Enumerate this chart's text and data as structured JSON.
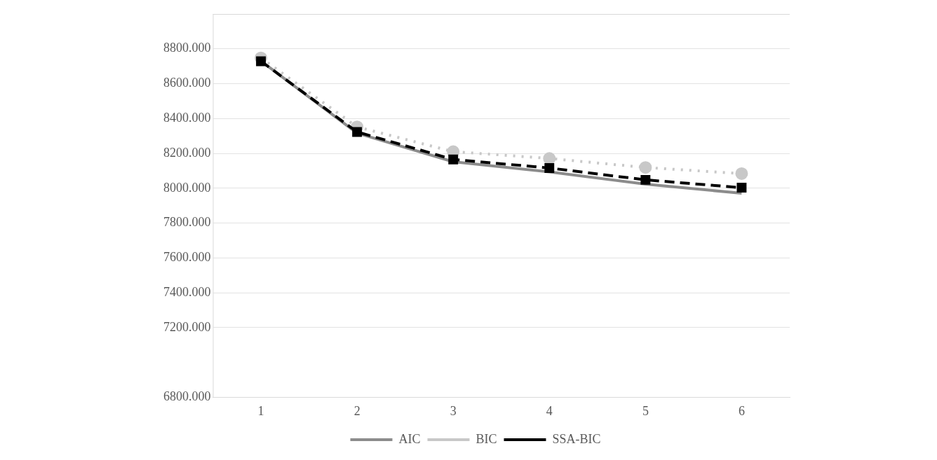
{
  "chart_data": {
    "type": "line",
    "categories": [
      "1",
      "2",
      "3",
      "4",
      "5",
      "6"
    ],
    "series": [
      {
        "name": "AIC",
        "color": "#8c8c8c",
        "values": [
          8730,
          8316,
          8152,
          8094,
          8023,
          7971
        ],
        "marker": "none",
        "line_style": "solid"
      },
      {
        "name": "BIC",
        "color": "#c8c8c8",
        "values": [
          8748,
          8352,
          8210,
          8171,
          8119,
          8084
        ],
        "marker": "circle",
        "line_style": "dotted"
      },
      {
        "name": "SSA-BIC",
        "color": "#000000",
        "values": [
          8729,
          8323,
          8165,
          8116,
          8048,
          8003
        ],
        "marker": "square",
        "line_style": "dashed"
      }
    ],
    "ylim": [
      6800,
      9000
    ],
    "yticks": [
      {
        "value": 6800,
        "label": "6800.000"
      },
      {
        "value": 7200,
        "label": "7200.000"
      },
      {
        "value": 7400,
        "label": "7400.000"
      },
      {
        "value": 7600,
        "label": "7600.000"
      },
      {
        "value": 7800,
        "label": "7800.000"
      },
      {
        "value": 8000,
        "label": "8000.000"
      },
      {
        "value": 8200,
        "label": "8200.000"
      },
      {
        "value": 8400,
        "label": "8400.000"
      },
      {
        "value": 8600,
        "label": "8600.000"
      },
      {
        "value": 8800,
        "label": "8800.000"
      }
    ],
    "grid": "y",
    "legend": "bottom"
  }
}
